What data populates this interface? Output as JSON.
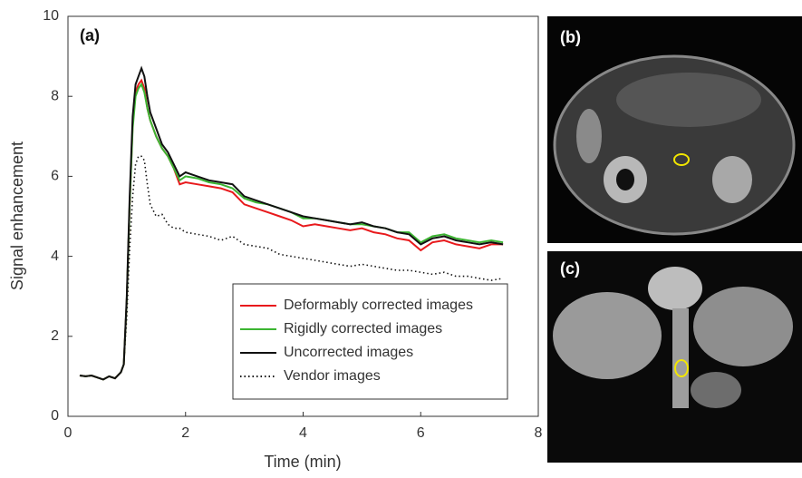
{
  "chart_data": {
    "type": "line",
    "annotation": "(a)",
    "x_label": "Time (min)",
    "y_label": "Signal enhancement",
    "xlim": [
      0,
      8
    ],
    "ylim": [
      0,
      10
    ],
    "xticks": [
      0,
      2,
      4,
      6,
      8
    ],
    "yticks": [
      0,
      2,
      4,
      6,
      8,
      10
    ],
    "grid": false,
    "legend": "lower right",
    "x": [
      0.2,
      0.3,
      0.4,
      0.5,
      0.6,
      0.7,
      0.8,
      0.9,
      0.95,
      1.0,
      1.05,
      1.1,
      1.15,
      1.2,
      1.25,
      1.3,
      1.35,
      1.4,
      1.5,
      1.6,
      1.7,
      1.8,
      1.9,
      2.0,
      2.2,
      2.4,
      2.6,
      2.8,
      3.0,
      3.2,
      3.4,
      3.6,
      3.8,
      4.0,
      4.2,
      4.4,
      4.6,
      4.8,
      5.0,
      5.2,
      5.4,
      5.6,
      5.8,
      6.0,
      6.2,
      6.4,
      6.6,
      6.8,
      7.0,
      7.2,
      7.4
    ],
    "series": [
      {
        "name": "Deformably corrected images",
        "color": "#e8191c",
        "style": "solid",
        "values": [
          1.02,
          1.0,
          1.02,
          0.97,
          0.92,
          1.0,
          0.95,
          1.1,
          1.3,
          2.9,
          5.3,
          7.3,
          8.1,
          8.3,
          8.4,
          8.2,
          7.7,
          7.4,
          7.0,
          6.7,
          6.5,
          6.2,
          5.8,
          5.85,
          5.8,
          5.75,
          5.7,
          5.6,
          5.3,
          5.2,
          5.1,
          5.0,
          4.9,
          4.75,
          4.8,
          4.75,
          4.7,
          4.65,
          4.7,
          4.6,
          4.55,
          4.45,
          4.4,
          4.15,
          4.35,
          4.4,
          4.3,
          4.25,
          4.2,
          4.3,
          4.3
        ]
      },
      {
        "name": "Rigidly corrected images",
        "color": "#3cb532",
        "style": "solid",
        "values": [
          1.02,
          1.0,
          1.02,
          0.97,
          0.92,
          1.0,
          0.95,
          1.1,
          1.3,
          2.9,
          5.3,
          7.2,
          8.0,
          8.2,
          8.3,
          8.1,
          7.7,
          7.4,
          7.0,
          6.7,
          6.5,
          6.2,
          5.9,
          6.0,
          5.95,
          5.85,
          5.8,
          5.7,
          5.45,
          5.35,
          5.3,
          5.2,
          5.1,
          4.95,
          4.95,
          4.9,
          4.85,
          4.8,
          4.8,
          4.75,
          4.7,
          4.6,
          4.6,
          4.35,
          4.5,
          4.55,
          4.45,
          4.4,
          4.35,
          4.4,
          4.35
        ]
      },
      {
        "name": "Uncorrected images",
        "color": "#111111",
        "style": "solid",
        "values": [
          1.02,
          1.0,
          1.02,
          0.97,
          0.92,
          1.0,
          0.95,
          1.1,
          1.3,
          3.0,
          5.5,
          7.5,
          8.3,
          8.5,
          8.7,
          8.5,
          8.0,
          7.6,
          7.2,
          6.8,
          6.6,
          6.3,
          6.0,
          6.1,
          6.0,
          5.9,
          5.85,
          5.8,
          5.5,
          5.4,
          5.3,
          5.2,
          5.1,
          5.0,
          4.95,
          4.9,
          4.85,
          4.8,
          4.85,
          4.75,
          4.7,
          4.6,
          4.55,
          4.3,
          4.45,
          4.5,
          4.4,
          4.35,
          4.3,
          4.35,
          4.3
        ]
      },
      {
        "name": "Vendor images",
        "color": "#111111",
        "style": "dotted",
        "values": [
          1.02,
          1.0,
          1.02,
          0.97,
          0.92,
          1.0,
          0.95,
          1.1,
          1.3,
          2.5,
          4.2,
          5.5,
          6.3,
          6.5,
          6.5,
          6.4,
          5.8,
          5.3,
          5.0,
          5.05,
          4.8,
          4.7,
          4.7,
          4.6,
          4.55,
          4.5,
          4.4,
          4.5,
          4.3,
          4.25,
          4.2,
          4.05,
          4.0,
          3.95,
          3.9,
          3.85,
          3.8,
          3.75,
          3.8,
          3.75,
          3.7,
          3.65,
          3.65,
          3.6,
          3.55,
          3.6,
          3.5,
          3.5,
          3.45,
          3.4,
          3.45
        ]
      }
    ]
  },
  "images": [
    "(b)",
    "(c)"
  ]
}
